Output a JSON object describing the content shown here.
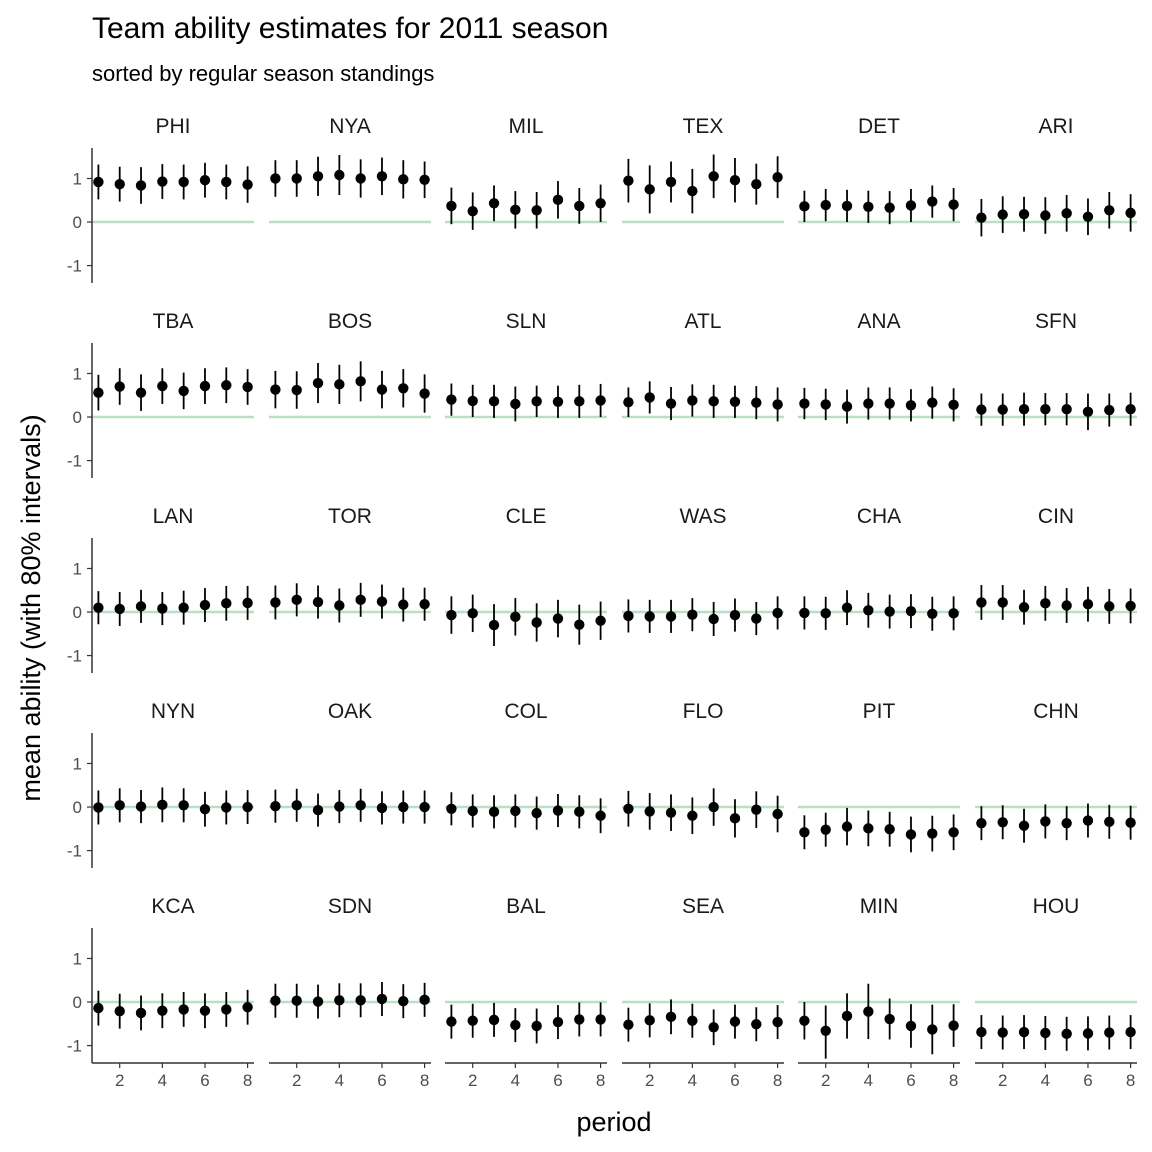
{
  "chart_data": {
    "type": "scatter",
    "title": "Team ability estimates for 2011 season",
    "subtitle": "sorted by regular season standings",
    "xlabel": "period",
    "ylabel": "mean ability (with 80% intervals)",
    "x": [
      1,
      2,
      3,
      4,
      5,
      6,
      7,
      8
    ],
    "xlim": [
      0.7,
      8.3
    ],
    "xticks": [
      2,
      4,
      6,
      8
    ],
    "ylim": [
      -1.4,
      1.7
    ],
    "yticks": [
      1,
      0,
      -1
    ],
    "yticklabels": [
      "1",
      "0",
      "-1"
    ],
    "reference_line": 0,
    "reference_color": "#b8e0c4",
    "point_color": "#000000",
    "facet_columns": 6,
    "facets": [
      {
        "team": "PHI",
        "mean": [
          0.92,
          0.87,
          0.84,
          0.93,
          0.92,
          0.96,
          0.92,
          0.86
        ],
        "lower": [
          0.52,
          0.47,
          0.42,
          0.53,
          0.52,
          0.56,
          0.52,
          0.44
        ],
        "upper": [
          1.32,
          1.27,
          1.26,
          1.33,
          1.32,
          1.36,
          1.32,
          1.28
        ]
      },
      {
        "team": "NYA",
        "mean": [
          1.0,
          1.0,
          1.05,
          1.08,
          1.0,
          1.05,
          0.98,
          0.97
        ],
        "lower": [
          0.58,
          0.58,
          0.6,
          0.62,
          0.56,
          0.62,
          0.54,
          0.55
        ],
        "upper": [
          1.42,
          1.42,
          1.5,
          1.54,
          1.44,
          1.48,
          1.42,
          1.39
        ]
      },
      {
        "team": "MIL",
        "mean": [
          0.37,
          0.25,
          0.43,
          0.28,
          0.27,
          0.51,
          0.37,
          0.43
        ],
        "lower": [
          -0.05,
          -0.18,
          0.02,
          -0.15,
          -0.15,
          0.08,
          -0.04,
          0.0
        ],
        "upper": [
          0.79,
          0.68,
          0.84,
          0.71,
          0.69,
          0.94,
          0.78,
          0.86
        ]
      },
      {
        "team": "TEX",
        "mean": [
          0.95,
          0.75,
          0.92,
          0.71,
          1.05,
          0.96,
          0.87,
          1.03
        ],
        "lower": [
          0.45,
          0.2,
          0.45,
          0.2,
          0.55,
          0.45,
          0.4,
          0.55
        ],
        "upper": [
          1.45,
          1.3,
          1.39,
          1.22,
          1.55,
          1.47,
          1.34,
          1.51
        ]
      },
      {
        "team": "DET",
        "mean": [
          0.36,
          0.39,
          0.37,
          0.35,
          0.33,
          0.38,
          0.47,
          0.4
        ],
        "lower": [
          0.0,
          0.02,
          0.0,
          -0.02,
          -0.05,
          0.0,
          0.1,
          0.02
        ],
        "upper": [
          0.72,
          0.76,
          0.74,
          0.72,
          0.71,
          0.76,
          0.84,
          0.78
        ]
      },
      {
        "team": "ARI",
        "mean": [
          0.1,
          0.17,
          0.18,
          0.15,
          0.2,
          0.12,
          0.27,
          0.21
        ],
        "lower": [
          -0.33,
          -0.25,
          -0.22,
          -0.27,
          -0.22,
          -0.3,
          -0.15,
          -0.22
        ],
        "upper": [
          0.53,
          0.59,
          0.58,
          0.57,
          0.62,
          0.54,
          0.69,
          0.64
        ]
      },
      {
        "team": "TBA",
        "mean": [
          0.56,
          0.7,
          0.56,
          0.71,
          0.6,
          0.71,
          0.73,
          0.69
        ],
        "lower": [
          0.15,
          0.28,
          0.14,
          0.3,
          0.18,
          0.3,
          0.32,
          0.28
        ],
        "upper": [
          0.97,
          1.12,
          0.98,
          1.12,
          1.02,
          1.12,
          1.14,
          1.1
        ]
      },
      {
        "team": "BOS",
        "mean": [
          0.63,
          0.62,
          0.78,
          0.75,
          0.82,
          0.63,
          0.66,
          0.54
        ],
        "lower": [
          0.2,
          0.19,
          0.32,
          0.3,
          0.36,
          0.2,
          0.22,
          0.1
        ],
        "upper": [
          1.06,
          1.05,
          1.24,
          1.2,
          1.28,
          1.06,
          1.1,
          0.98
        ]
      },
      {
        "team": "SLN",
        "mean": [
          0.4,
          0.37,
          0.36,
          0.3,
          0.36,
          0.35,
          0.36,
          0.38
        ],
        "lower": [
          0.03,
          0.0,
          -0.02,
          -0.1,
          0.0,
          -0.02,
          -0.02,
          0.0
        ],
        "upper": [
          0.77,
          0.74,
          0.74,
          0.7,
          0.72,
          0.72,
          0.74,
          0.76
        ]
      },
      {
        "team": "ATL",
        "mean": [
          0.34,
          0.45,
          0.31,
          0.38,
          0.36,
          0.35,
          0.33,
          0.29
        ],
        "lower": [
          0.0,
          0.08,
          -0.07,
          0.01,
          -0.02,
          -0.02,
          -0.05,
          -0.1
        ],
        "upper": [
          0.68,
          0.82,
          0.69,
          0.75,
          0.74,
          0.72,
          0.71,
          0.68
        ]
      },
      {
        "team": "ANA",
        "mean": [
          0.31,
          0.29,
          0.24,
          0.31,
          0.31,
          0.27,
          0.33,
          0.28
        ],
        "lower": [
          -0.05,
          -0.07,
          -0.15,
          -0.06,
          -0.06,
          -0.1,
          -0.04,
          -0.1
        ],
        "upper": [
          0.67,
          0.65,
          0.63,
          0.68,
          0.68,
          0.64,
          0.7,
          0.66
        ]
      },
      {
        "team": "SFN",
        "mean": [
          0.17,
          0.17,
          0.18,
          0.18,
          0.18,
          0.12,
          0.16,
          0.18
        ],
        "lower": [
          -0.2,
          -0.2,
          -0.2,
          -0.19,
          -0.19,
          -0.3,
          -0.22,
          -0.2
        ],
        "upper": [
          0.54,
          0.54,
          0.56,
          0.55,
          0.55,
          0.54,
          0.54,
          0.56
        ]
      },
      {
        "team": "LAN",
        "mean": [
          0.1,
          0.07,
          0.13,
          0.08,
          0.1,
          0.16,
          0.2,
          0.21
        ],
        "lower": [
          -0.28,
          -0.32,
          -0.25,
          -0.3,
          -0.29,
          -0.23,
          -0.2,
          -0.18
        ],
        "upper": [
          0.48,
          0.46,
          0.51,
          0.46,
          0.49,
          0.55,
          0.6,
          0.6
        ]
      },
      {
        "team": "TOR",
        "mean": [
          0.22,
          0.28,
          0.23,
          0.15,
          0.28,
          0.24,
          0.17,
          0.18
        ],
        "lower": [
          -0.17,
          -0.1,
          -0.15,
          -0.24,
          -0.11,
          -0.15,
          -0.22,
          -0.2
        ],
        "upper": [
          0.61,
          0.66,
          0.61,
          0.54,
          0.67,
          0.63,
          0.56,
          0.56
        ]
      },
      {
        "team": "CLE",
        "mean": [
          -0.07,
          -0.03,
          -0.3,
          -0.11,
          -0.24,
          -0.15,
          -0.29,
          -0.2
        ],
        "lower": [
          -0.5,
          -0.46,
          -0.78,
          -0.54,
          -0.68,
          -0.58,
          -0.75,
          -0.64
        ],
        "upper": [
          0.36,
          0.4,
          0.18,
          0.32,
          0.2,
          0.28,
          0.17,
          0.24
        ]
      },
      {
        "team": "WAS",
        "mean": [
          -0.09,
          -0.1,
          -0.1,
          -0.06,
          -0.16,
          -0.07,
          -0.15,
          -0.02
        ],
        "lower": [
          -0.47,
          -0.48,
          -0.48,
          -0.44,
          -0.55,
          -0.45,
          -0.53,
          -0.4
        ],
        "upper": [
          0.29,
          0.28,
          0.28,
          0.32,
          0.23,
          0.31,
          0.23,
          0.36
        ]
      },
      {
        "team": "CHA",
        "mean": [
          -0.02,
          -0.03,
          0.1,
          0.04,
          0.01,
          0.02,
          -0.04,
          -0.03
        ],
        "lower": [
          -0.4,
          -0.41,
          -0.3,
          -0.36,
          -0.38,
          -0.37,
          -0.43,
          -0.42
        ],
        "upper": [
          0.36,
          0.35,
          0.5,
          0.44,
          0.4,
          0.41,
          0.35,
          0.36
        ]
      },
      {
        "team": "CIN",
        "mean": [
          0.22,
          0.22,
          0.11,
          0.2,
          0.15,
          0.18,
          0.13,
          0.14
        ],
        "lower": [
          -0.18,
          -0.18,
          -0.29,
          -0.2,
          -0.25,
          -0.22,
          -0.27,
          -0.26
        ],
        "upper": [
          0.62,
          0.62,
          0.51,
          0.6,
          0.55,
          0.58,
          0.53,
          0.54
        ]
      },
      {
        "team": "NYN",
        "mean": [
          -0.01,
          0.04,
          0.01,
          0.05,
          0.04,
          -0.05,
          -0.01,
          0.0
        ],
        "lower": [
          -0.4,
          -0.35,
          -0.37,
          -0.35,
          -0.35,
          -0.45,
          -0.4,
          -0.39
        ],
        "upper": [
          0.38,
          0.43,
          0.39,
          0.45,
          0.43,
          0.35,
          0.38,
          0.39
        ]
      },
      {
        "team": "OAK",
        "mean": [
          0.02,
          0.04,
          -0.07,
          0.01,
          0.04,
          -0.02,
          0.0,
          0.0
        ],
        "lower": [
          -0.36,
          -0.34,
          -0.45,
          -0.37,
          -0.34,
          -0.4,
          -0.38,
          -0.38
        ],
        "upper": [
          0.4,
          0.42,
          0.31,
          0.39,
          0.42,
          0.36,
          0.38,
          0.38
        ]
      },
      {
        "team": "COL",
        "mean": [
          -0.04,
          -0.09,
          -0.11,
          -0.09,
          -0.14,
          -0.08,
          -0.11,
          -0.2
        ],
        "lower": [
          -0.42,
          -0.47,
          -0.49,
          -0.47,
          -0.52,
          -0.46,
          -0.49,
          -0.6
        ],
        "upper": [
          0.34,
          0.29,
          0.27,
          0.29,
          0.24,
          0.3,
          0.27,
          0.2
        ]
      },
      {
        "team": "FLO",
        "mean": [
          -0.04,
          -0.1,
          -0.13,
          -0.2,
          0.0,
          -0.26,
          -0.06,
          -0.16
        ],
        "lower": [
          -0.45,
          -0.52,
          -0.55,
          -0.62,
          -0.43,
          -0.7,
          -0.48,
          -0.58
        ],
        "upper": [
          0.37,
          0.32,
          0.29,
          0.22,
          0.43,
          0.18,
          0.36,
          0.26
        ]
      },
      {
        "team": "PIT",
        "mean": [
          -0.58,
          -0.52,
          -0.45,
          -0.49,
          -0.51,
          -0.63,
          -0.61,
          -0.58
        ],
        "lower": [
          -0.97,
          -0.91,
          -0.88,
          -0.9,
          -0.91,
          -1.04,
          -1.02,
          -0.99
        ],
        "upper": [
          -0.19,
          -0.13,
          -0.02,
          -0.08,
          -0.11,
          -0.22,
          -0.2,
          -0.17
        ]
      },
      {
        "team": "CHN",
        "mean": [
          -0.37,
          -0.35,
          -0.43,
          -0.33,
          -0.37,
          -0.31,
          -0.34,
          -0.36
        ],
        "lower": [
          -0.76,
          -0.74,
          -0.82,
          -0.72,
          -0.76,
          -0.7,
          -0.73,
          -0.75
        ],
        "upper": [
          0.02,
          0.04,
          -0.04,
          0.06,
          0.02,
          0.08,
          0.05,
          0.03
        ]
      },
      {
        "team": "KCA",
        "mean": [
          -0.14,
          -0.21,
          -0.25,
          -0.2,
          -0.17,
          -0.2,
          -0.17,
          -0.12
        ],
        "lower": [
          -0.54,
          -0.61,
          -0.65,
          -0.6,
          -0.57,
          -0.6,
          -0.57,
          -0.52
        ],
        "upper": [
          0.26,
          0.19,
          0.15,
          0.2,
          0.23,
          0.2,
          0.23,
          0.28
        ]
      },
      {
        "team": "SDN",
        "mean": [
          0.03,
          0.03,
          0.01,
          0.04,
          0.04,
          0.07,
          0.02,
          0.05
        ],
        "lower": [
          -0.36,
          -0.36,
          -0.38,
          -0.35,
          -0.35,
          -0.32,
          -0.37,
          -0.34
        ],
        "upper": [
          0.42,
          0.42,
          0.4,
          0.43,
          0.43,
          0.46,
          0.41,
          0.44
        ]
      },
      {
        "team": "BAL",
        "mean": [
          -0.45,
          -0.43,
          -0.41,
          -0.53,
          -0.55,
          -0.46,
          -0.4,
          -0.4
        ],
        "lower": [
          -0.84,
          -0.82,
          -0.8,
          -0.92,
          -0.95,
          -0.85,
          -0.79,
          -0.79
        ],
        "upper": [
          -0.06,
          -0.04,
          -0.02,
          -0.14,
          -0.15,
          -0.07,
          -0.01,
          -0.01
        ]
      },
      {
        "team": "SEA",
        "mean": [
          -0.52,
          -0.42,
          -0.34,
          -0.43,
          -0.58,
          -0.45,
          -0.51,
          -0.46
        ],
        "lower": [
          -0.91,
          -0.81,
          -0.74,
          -0.82,
          -0.99,
          -0.84,
          -0.9,
          -0.85
        ],
        "upper": [
          -0.13,
          -0.03,
          0.06,
          -0.04,
          -0.17,
          -0.06,
          -0.12,
          -0.07
        ]
      },
      {
        "team": "MIN",
        "mean": [
          -0.43,
          -0.66,
          -0.32,
          -0.22,
          -0.39,
          -0.55,
          -0.63,
          -0.54
        ],
        "lower": [
          -0.86,
          -1.3,
          -0.84,
          -0.85,
          -0.86,
          -1.05,
          -1.2,
          -1.03
        ],
        "upper": [
          0.0,
          -0.08,
          0.2,
          0.42,
          0.08,
          -0.05,
          -0.06,
          -0.05
        ]
      },
      {
        "team": "HOU",
        "mean": [
          -0.69,
          -0.7,
          -0.69,
          -0.71,
          -0.73,
          -0.72,
          -0.7,
          -0.69
        ],
        "lower": [
          -1.08,
          -1.09,
          -1.08,
          -1.1,
          -1.12,
          -1.11,
          -1.09,
          -1.08
        ],
        "upper": [
          -0.3,
          -0.31,
          -0.3,
          -0.32,
          -0.34,
          -0.33,
          -0.31,
          -0.3
        ]
      }
    ]
  }
}
